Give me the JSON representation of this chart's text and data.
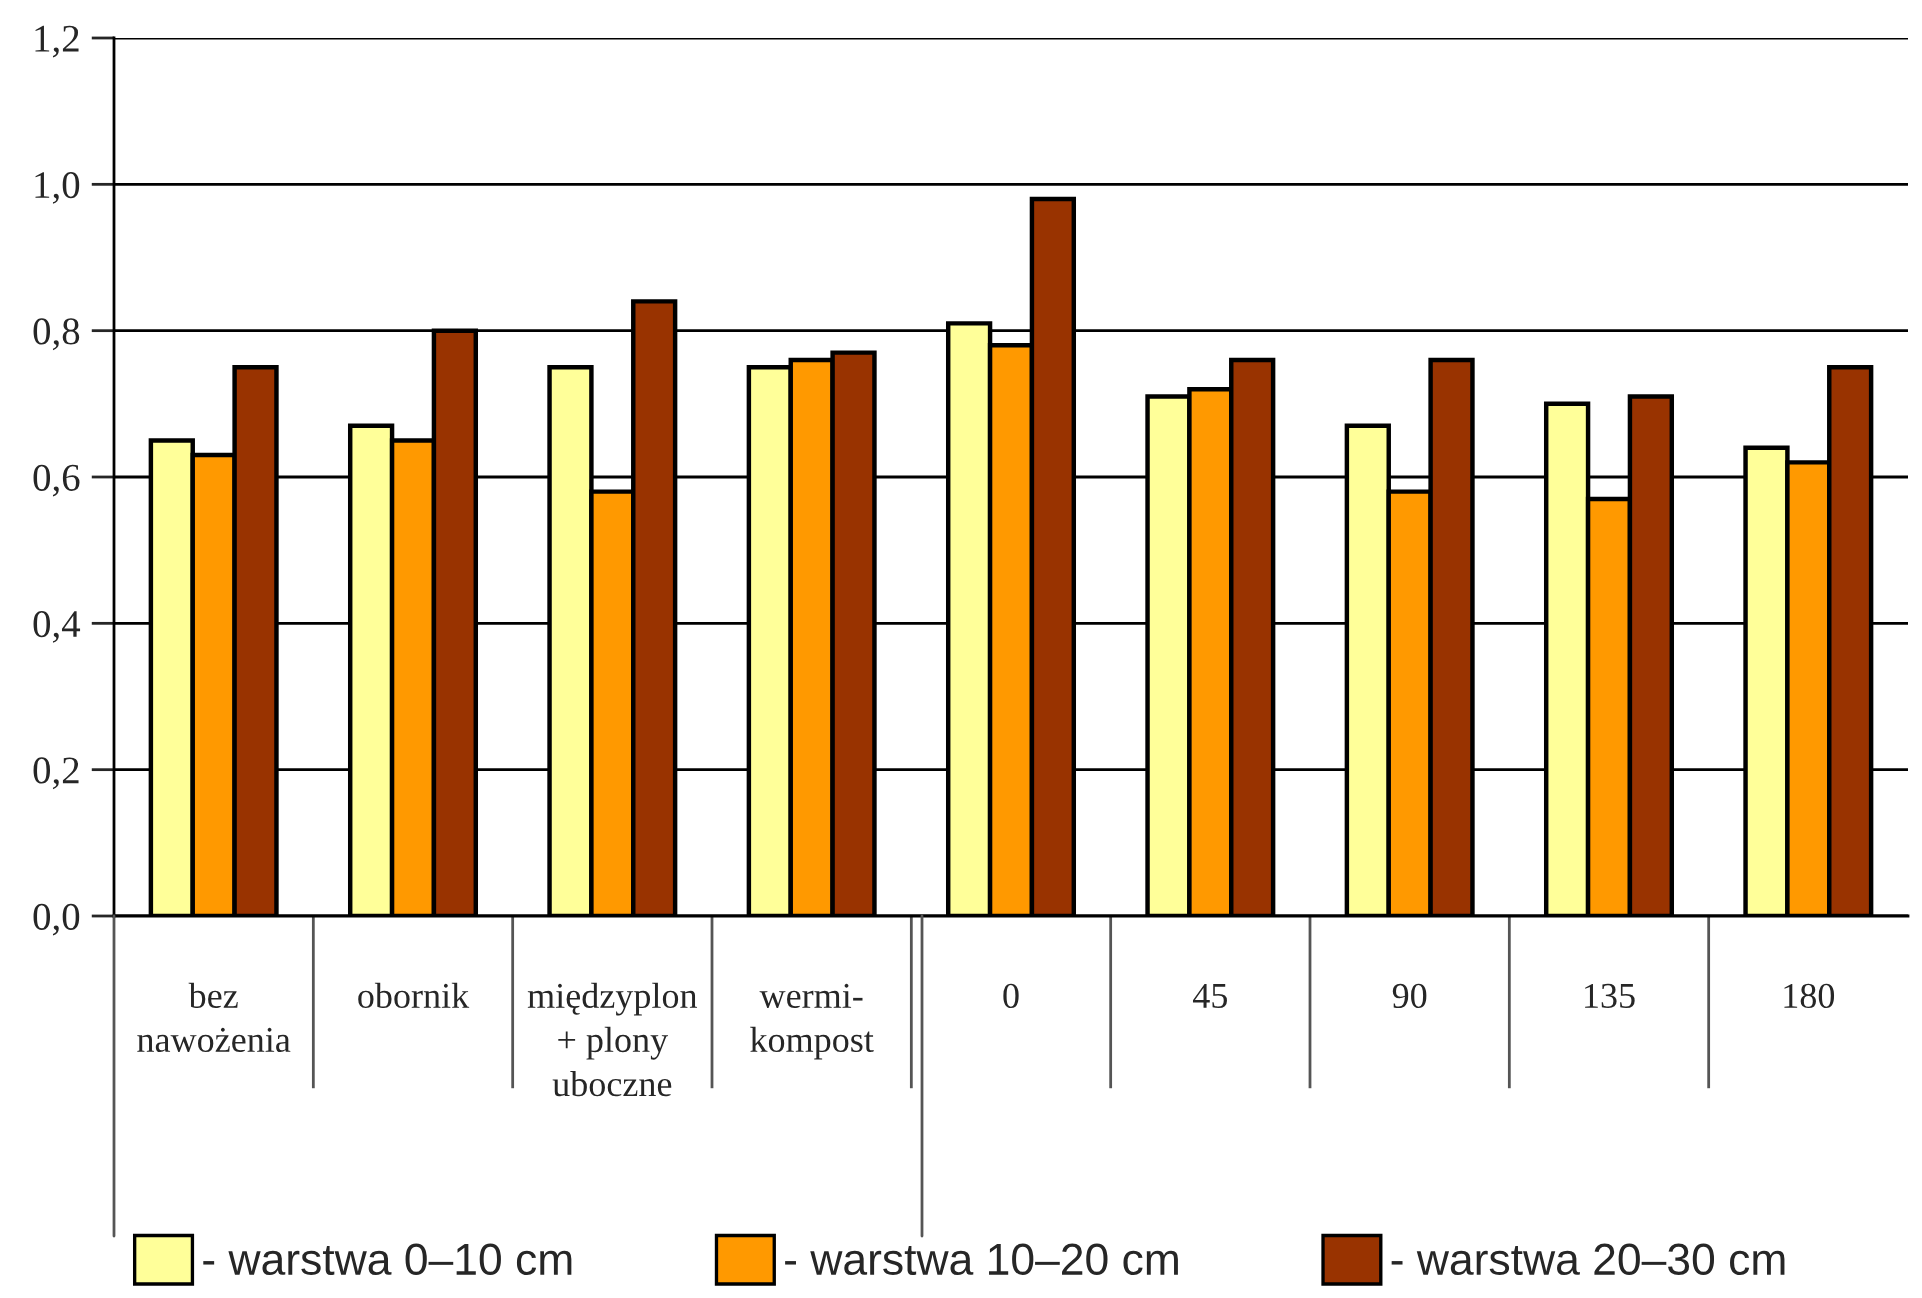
{
  "chart_data": {
    "type": "bar",
    "categories": [
      "bez\nnawożenia",
      "obornik",
      "międzyplon\n+ plony\nuboczne",
      "wermi-\nkompost",
      "0",
      "45",
      "90",
      "135",
      "180"
    ],
    "series": [
      {
        "name": "- warstwa 0–10 cm",
        "color": "#ffff99",
        "values": [
          0.65,
          0.67,
          0.75,
          0.75,
          0.81,
          0.71,
          0.67,
          0.7,
          0.64
        ]
      },
      {
        "name": "- warstwa 10–20 cm",
        "color": "#ff9900",
        "values": [
          0.63,
          0.65,
          0.58,
          0.76,
          0.78,
          0.72,
          0.58,
          0.57,
          0.62
        ]
      },
      {
        "name": "- warstwa 20–30 cm",
        "color": "#993300",
        "values": [
          0.75,
          0.8,
          0.84,
          0.77,
          0.98,
          0.76,
          0.76,
          0.71,
          0.75
        ]
      }
    ],
    "ylim": [
      0,
      1.2
    ],
    "yticks": [
      {
        "value": 0,
        "label": "0,0"
      },
      {
        "value": 0.2,
        "label": "0,2"
      },
      {
        "value": 0.4,
        "label": "0,4"
      },
      {
        "value": 0.6,
        "label": "0,6"
      },
      {
        "value": 0.8,
        "label": "0,8"
      },
      {
        "value": 1.0,
        "label": "1,0"
      },
      {
        "value": 1.2,
        "label": "1,2"
      }
    ],
    "grid": "y",
    "legend": "bottom"
  }
}
